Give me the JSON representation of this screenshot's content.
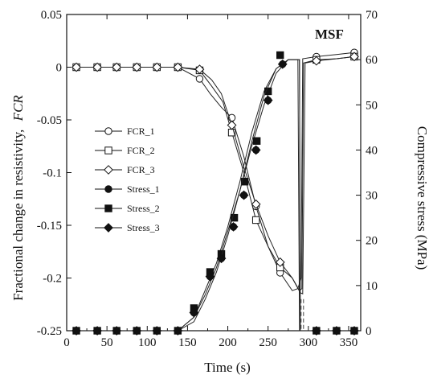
{
  "chart_data": {
    "type": "line",
    "xlabel": "Time (s)",
    "ylabel_left": "Fractional change in resistivity,",
    "ylabel_left_italic": "FCR",
    "ylabel_right": "Compressive stress (MPa)",
    "annotation": "MSF",
    "xlim": [
      0,
      365
    ],
    "ylim_left": [
      -0.25,
      0.05
    ],
    "ylim_right": [
      0,
      70
    ],
    "x_ticks": [
      0,
      50,
      100,
      150,
      200,
      250,
      300,
      350
    ],
    "x_tick_labels": [
      "0",
      "50",
      "100",
      "150",
      "200",
      "250",
      "300",
      "350"
    ],
    "y_left_ticks": [
      0.05,
      0,
      -0.05,
      -0.1,
      -0.15,
      -0.2,
      -0.25
    ],
    "y_left_tick_labels": [
      "0.05",
      "0",
      "-0.05",
      "-0.1",
      "-0.15",
      "-0.2",
      "-0.25"
    ],
    "y_right_ticks": [
      70,
      60,
      50,
      40,
      30,
      20,
      10,
      0
    ],
    "y_right_tick_labels": [
      "70",
      "60",
      "50",
      "40",
      "30",
      "20",
      "10",
      "0"
    ],
    "legend_position": "center-left",
    "series": [
      {
        "name": "FCR_1",
        "axis": "left",
        "marker": "circle-open",
        "stroke": "#222222",
        "x": [
          12,
          38,
          62,
          87,
          112,
          138,
          165,
          178,
          192,
          205,
          220,
          235,
          250,
          265,
          280,
          287,
          291,
          293,
          310,
          335,
          357
        ],
        "y": [
          0,
          0,
          0,
          0,
          0,
          0,
          -0.011,
          -0.025,
          -0.038,
          -0.048,
          -0.085,
          -0.132,
          -0.17,
          -0.195,
          -0.212,
          -0.21,
          -0.2,
          0.008,
          0.01,
          0.012,
          0.014
        ]
      },
      {
        "name": "FCR_2",
        "axis": "left",
        "marker": "square-open",
        "stroke": "#222222",
        "x": [
          12,
          38,
          62,
          87,
          112,
          138,
          165,
          180,
          194,
          205,
          220,
          235,
          250,
          265,
          280,
          289,
          292,
          294,
          310,
          335,
          357
        ],
        "y": [
          0,
          0,
          0,
          0,
          0,
          0,
          -0.003,
          -0.018,
          -0.033,
          -0.062,
          -0.1,
          -0.145,
          -0.17,
          -0.19,
          -0.2,
          -0.212,
          -0.21,
          0.004,
          0.007,
          0.008,
          0.01
        ]
      },
      {
        "name": "FCR_3",
        "axis": "left",
        "marker": "diamond-open",
        "stroke": "#222222",
        "x": [
          12,
          38,
          62,
          87,
          112,
          138,
          165,
          180,
          192,
          205,
          220,
          235,
          250,
          265,
          280,
          290,
          293,
          296,
          310,
          335,
          357
        ],
        "y": [
          0,
          0,
          0,
          0,
          0,
          0,
          -0.002,
          -0.012,
          -0.025,
          -0.055,
          -0.095,
          -0.13,
          -0.16,
          -0.185,
          -0.2,
          -0.214,
          -0.215,
          0.004,
          0.006,
          0.008,
          0.01
        ]
      },
      {
        "name": "Stress_1",
        "axis": "right",
        "marker": "circle-filled",
        "stroke": "#222222",
        "x": [
          12,
          38,
          62,
          87,
          112,
          138,
          158,
          172,
          186,
          200,
          215,
          230,
          245,
          260,
          275,
          283,
          287,
          289,
          310,
          335,
          357
        ],
        "y": [
          0,
          0,
          0,
          0,
          0,
          0,
          3,
          8,
          14,
          22,
          31,
          41,
          50,
          57,
          60,
          60,
          60,
          0,
          0,
          0,
          0
        ]
      },
      {
        "name": "Stress_2",
        "axis": "right",
        "marker": "square-filled",
        "stroke": "#222222",
        "x": [
          12,
          38,
          62,
          87,
          112,
          138,
          158,
          172,
          186,
          200,
          215,
          230,
          245,
          260,
          275,
          285,
          289,
          290,
          310,
          335,
          357
        ],
        "y": [
          0,
          0,
          0,
          0,
          0,
          0,
          3,
          9,
          15,
          23,
          33,
          44,
          53,
          58,
          60,
          60,
          60,
          0,
          0,
          0,
          0
        ]
      },
      {
        "name": "Stress_3",
        "axis": "right",
        "marker": "diamond-filled",
        "stroke": "#222222",
        "x": [
          12,
          38,
          62,
          87,
          112,
          138,
          158,
          172,
          186,
          200,
          215,
          230,
          245,
          260,
          275,
          285,
          289,
          290,
          310,
          335,
          357
        ],
        "y": [
          0,
          0,
          0,
          0,
          0,
          0,
          2,
          7,
          13,
          21,
          31,
          42,
          52,
          58,
          60,
          60,
          60,
          0,
          0,
          0,
          0
        ]
      }
    ],
    "marker_points": {
      "FCR_1": {
        "x": [
          12,
          38,
          62,
          87,
          112,
          138,
          165,
          205,
          235,
          265,
          310,
          357
        ],
        "y": [
          0,
          0,
          0,
          0,
          0,
          0,
          -0.011,
          -0.048,
          -0.132,
          -0.195,
          0.01,
          0.014
        ]
      },
      "FCR_2": {
        "x": [
          12,
          38,
          62,
          87,
          112,
          138,
          165,
          205,
          235,
          265,
          310,
          357
        ],
        "y": [
          0,
          0,
          0,
          0,
          0,
          0,
          -0.003,
          -0.062,
          -0.145,
          -0.19,
          0.007,
          0.01
        ]
      },
      "FCR_3": {
        "x": [
          12,
          38,
          62,
          87,
          112,
          138,
          165,
          205,
          235,
          265,
          310,
          357
        ],
        "y": [
          0,
          0,
          0,
          0,
          0,
          0,
          -0.002,
          -0.055,
          -0.13,
          -0.185,
          0.006,
          0.01
        ]
      },
      "Stress_1": {
        "x": [
          12,
          38,
          62,
          87,
          112,
          138,
          158,
          178,
          192,
          207,
          220,
          235,
          250,
          268,
          310,
          335,
          357
        ],
        "y": [
          0,
          0,
          0,
          0,
          0,
          0,
          4,
          12,
          16,
          23,
          30,
          40,
          51,
          59,
          0,
          0,
          0
        ]
      },
      "Stress_2": {
        "x": [
          12,
          38,
          62,
          87,
          112,
          138,
          158,
          178,
          192,
          208,
          221,
          236,
          250,
          265,
          310,
          335,
          357
        ],
        "y": [
          0,
          0,
          0,
          0,
          0,
          0,
          5,
          13,
          17,
          25,
          33,
          42,
          53,
          61,
          0,
          0,
          0
        ]
      },
      "Stress_3": {
        "x": [
          12,
          38,
          62,
          87,
          112,
          138,
          158,
          178,
          192,
          207,
          220,
          235,
          250,
          268,
          310,
          335,
          357
        ],
        "y": [
          0,
          0,
          0,
          0,
          0,
          0,
          4,
          12,
          16,
          23,
          30,
          40,
          51,
          59,
          0,
          0,
          0
        ]
      }
    }
  }
}
